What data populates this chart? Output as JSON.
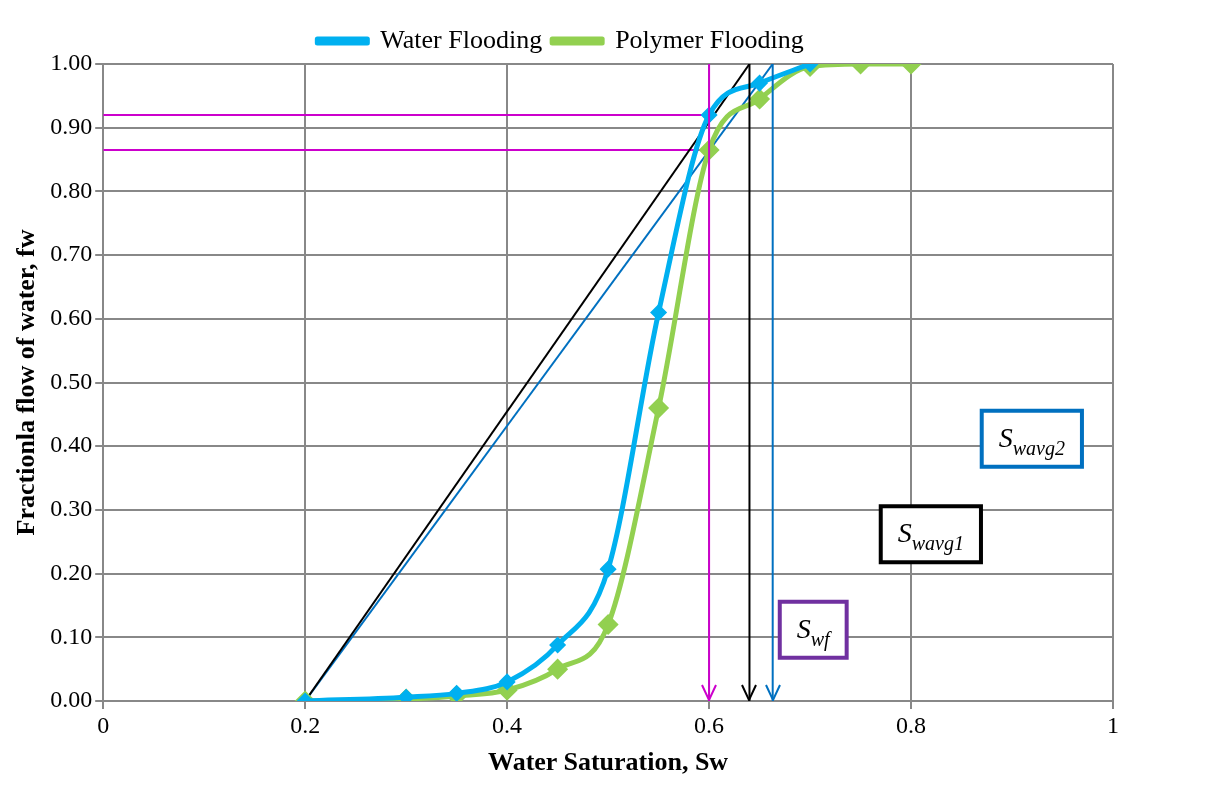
{
  "chart_data": {
    "type": "line",
    "xlabel": "Water Saturation, Sw",
    "ylabel": "Fractionla flow of water, fw",
    "xlim": [
      0,
      1
    ],
    "xticks": [
      0,
      0.2,
      0.4,
      0.6,
      0.8,
      1
    ],
    "ylim": [
      0,
      1
    ],
    "yticks": [
      {
        "value": 0,
        "label": "0.00"
      },
      {
        "value": 0.1,
        "label": "0.10"
      },
      {
        "value": 0.2,
        "label": "0.20"
      },
      {
        "value": 0.3,
        "label": "0.30"
      },
      {
        "value": 0.4,
        "label": "0.40"
      },
      {
        "value": 0.5,
        "label": "0.50"
      },
      {
        "value": 0.6,
        "label": "0.60"
      },
      {
        "value": 0.7,
        "label": "0.70"
      },
      {
        "value": 0.8,
        "label": "0.80"
      },
      {
        "value": 0.9,
        "label": "0.90"
      },
      {
        "value": 1,
        "label": "1.00"
      }
    ],
    "grid": true,
    "legend": "top",
    "marker": "diamond",
    "series": [
      {
        "name": "Water Flooding",
        "color": "#00b0f0",
        "x": [
          0.2,
          0.3,
          0.35,
          0.4,
          0.45,
          0.5,
          0.55,
          0.6,
          0.65,
          0.7
        ],
        "values": [
          0,
          0.006,
          0.012,
          0.03,
          0.088,
          0.207,
          0.61,
          0.92,
          0.97,
          1.0
        ]
      },
      {
        "name": "Polymer Flooding",
        "color": "#92d050",
        "x": [
          0.2,
          0.3,
          0.35,
          0.4,
          0.45,
          0.5,
          0.55,
          0.6,
          0.65,
          0.7,
          0.75,
          0.8
        ],
        "values": [
          0,
          0.003,
          0.008,
          0.017,
          0.05,
          0.12,
          0.46,
          0.865,
          0.945,
          0.996,
          1.0,
          1.0
        ]
      },
      {
        "type": "line",
        "color": "#000000",
        "marker": "none",
        "x": [
          0.2,
          0.64
        ],
        "values": [
          0,
          1.0
        ]
      },
      {
        "type": "line",
        "color": "#0070c0",
        "marker": "none",
        "x": [
          0.2,
          0.663
        ],
        "values": [
          0,
          1.0
        ]
      },
      {
        "type": "line",
        "color": "#cc00cc",
        "marker": "none",
        "x": [
          0,
          0.6
        ],
        "values": [
          0.92,
          0.92
        ]
      },
      {
        "type": "line",
        "color": "#cc00cc",
        "marker": "none",
        "x": [
          0,
          0.6
        ],
        "values": [
          0.865,
          0.865
        ]
      }
    ],
    "ref_lines": [
      {
        "axis": "x",
        "value": 0.6,
        "color": "#cc00cc"
      },
      {
        "axis": "x",
        "value": 0.64,
        "color": "#000000"
      },
      {
        "axis": "x",
        "value": 0.663,
        "color": "#0070c0"
      }
    ],
    "annotations": [
      "S$_{wf}$",
      "S$_{wavg1}$",
      "S$_{wavg2}$"
    ]
  }
}
